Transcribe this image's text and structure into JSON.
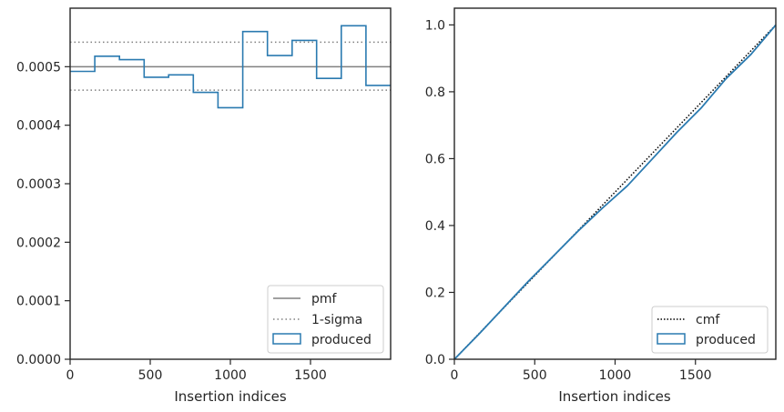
{
  "colors": {
    "produced": "#2a7ab0",
    "pmf": "#808080",
    "sigma": "#808080",
    "cmf": "#000000",
    "axes": "#262626"
  },
  "chart_data": [
    {
      "type": "step",
      "xlabel": "Insertion indices",
      "ylabel": "",
      "xlim": [
        0,
        2000
      ],
      "ylim": [
        0,
        0.0006
      ],
      "x_ticks": [
        0,
        500,
        1000,
        1500
      ],
      "x_tick_labels": [
        "0",
        "500",
        "1000",
        "1500"
      ],
      "y_ticks": [
        0,
        0.0001,
        0.0002,
        0.0003,
        0.0004,
        0.0005
      ],
      "y_tick_labels": [
        "0.0000",
        "0.0001",
        "0.0002",
        "0.0003",
        "0.0004",
        "0.0005"
      ],
      "grid": false,
      "legend_position": "lower right",
      "pmf": {
        "name": "pmf",
        "value": 0.0005
      },
      "sigma": {
        "name": "1-sigma",
        "values": [
          0.00046,
          0.000542
        ]
      },
      "series": [
        {
          "name": "produced",
          "bin_edges": [
            0,
            154,
            308,
            462,
            615,
            769,
            923,
            1077,
            1231,
            1385,
            1538,
            1692,
            1846,
            2000
          ],
          "values": [
            0.000492,
            0.000518,
            0.000512,
            0.000482,
            0.000486,
            0.000456,
            0.00043,
            0.00056,
            0.000519,
            0.000545,
            0.00048,
            0.00057,
            0.000468
          ]
        }
      ]
    },
    {
      "type": "line",
      "xlabel": "Insertion indices",
      "ylabel": "",
      "xlim": [
        0,
        2000
      ],
      "ylim": [
        0,
        1.05
      ],
      "x_ticks": [
        0,
        500,
        1000,
        1500
      ],
      "x_tick_labels": [
        "0",
        "500",
        "1000",
        "1500"
      ],
      "y_ticks": [
        0,
        0.2,
        0.4,
        0.6,
        0.8,
        1.0
      ],
      "y_tick_labels": [
        "0.0",
        "0.2",
        "0.4",
        "0.6",
        "0.8",
        "1.0"
      ],
      "grid": false,
      "legend_position": "lower right",
      "series": [
        {
          "name": "cmf",
          "style": "dotted",
          "x": [
            0,
            2000
          ],
          "y": [
            0,
            1.0
          ]
        },
        {
          "name": "produced",
          "style": "solid",
          "x": [
            0,
            154,
            308,
            462,
            615,
            769,
            923,
            1077,
            1231,
            1385,
            1538,
            1692,
            1846,
            2000
          ],
          "y": [
            0,
            0.076,
            0.155,
            0.234,
            0.308,
            0.383,
            0.453,
            0.519,
            0.599,
            0.679,
            0.753,
            0.84,
            0.912,
            1.0
          ]
        }
      ]
    }
  ]
}
